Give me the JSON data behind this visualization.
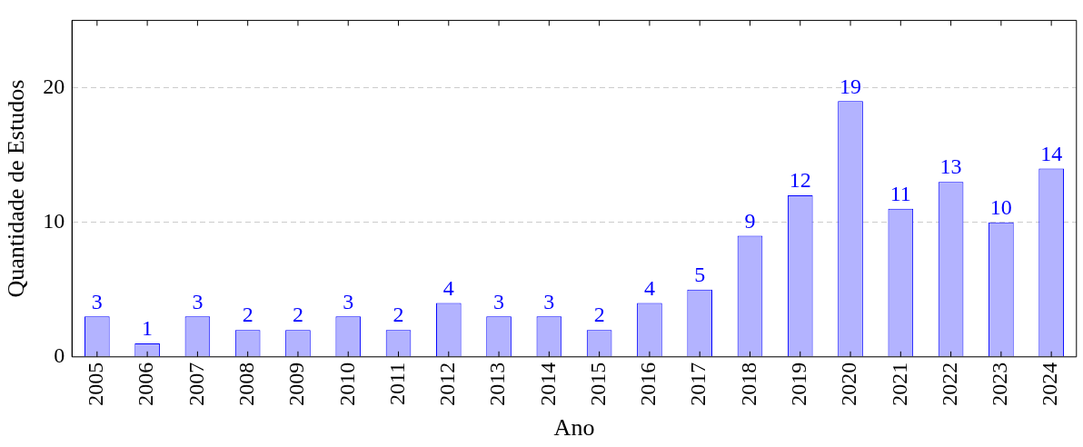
{
  "chart_data": {
    "type": "bar",
    "xlabel": "Ano",
    "ylabel": "Quantidade de Estudos",
    "categories": [
      "2005",
      "2006",
      "2007",
      "2008",
      "2009",
      "2010",
      "2011",
      "2012",
      "2013",
      "2014",
      "2015",
      "2016",
      "2017",
      "2018",
      "2019",
      "2020",
      "2021",
      "2022",
      "2023",
      "2024"
    ],
    "values": [
      3,
      1,
      3,
      2,
      2,
      3,
      2,
      4,
      3,
      3,
      2,
      4,
      5,
      9,
      12,
      19,
      11,
      13,
      10,
      14
    ],
    "color": "#b3b3ff",
    "ylim": [
      0,
      25
    ],
    "yticks": [
      0,
      10,
      20
    ],
    "grid": "y",
    "data_labels": true
  }
}
